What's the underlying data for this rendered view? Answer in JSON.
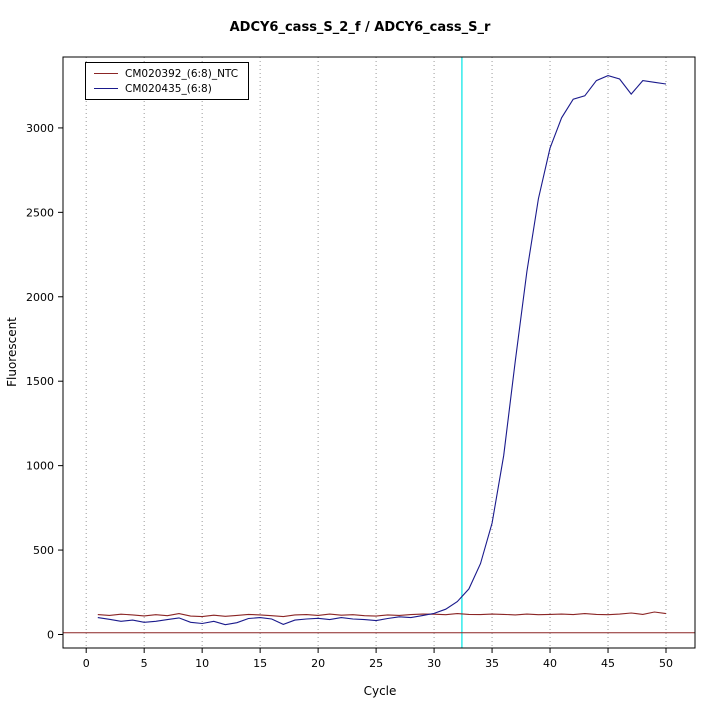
{
  "chart_data": {
    "type": "line",
    "title": "ADCY6_cass_S_2_f / ADCY6_cass_S_r",
    "xlabel": "Cycle",
    "ylabel": "Fluorescent",
    "xlim": [
      -2,
      52.5
    ],
    "ylim": [
      -80,
      3420
    ],
    "x_ticks": [
      0,
      5,
      10,
      15,
      20,
      25,
      30,
      35,
      40,
      45,
      50
    ],
    "y_ticks": [
      0,
      500,
      1000,
      1500,
      2000,
      2500,
      3000
    ],
    "grid": "vertical-dotted",
    "grid_color": "#999999",
    "box_color": "#000000",
    "threshold_line": {
      "x": 32.4,
      "color": "#00e5e5"
    },
    "baseline": {
      "y": 10,
      "color": "#8b2525"
    },
    "legend_position": "top-left",
    "x": [
      1,
      2,
      3,
      4,
      5,
      6,
      7,
      8,
      9,
      10,
      11,
      12,
      13,
      14,
      15,
      16,
      17,
      18,
      19,
      20,
      21,
      22,
      23,
      24,
      25,
      26,
      27,
      28,
      29,
      30,
      31,
      32,
      33,
      34,
      35,
      36,
      37,
      38,
      39,
      40,
      41,
      42,
      43,
      44,
      45,
      46,
      47,
      48,
      49,
      50
    ],
    "series": [
      {
        "name": "CM020392_(6:8)_NTC",
        "color": "#8b2525",
        "values": [
          118,
          113,
          120,
          116,
          110,
          117,
          111,
          124,
          109,
          106,
          114,
          108,
          113,
          119,
          116,
          111,
          106,
          116,
          118,
          113,
          121,
          114,
          117,
          111,
          109,
          116,
          113,
          118,
          121,
          120,
          117,
          124,
          119,
          118,
          121,
          119,
          116,
          121,
          117,
          119,
          121,
          118,
          124,
          119,
          117,
          121,
          127,
          119,
          133,
          124
        ]
      },
      {
        "name": "CM020435_(6:8)",
        "color": "#1a1a8c",
        "values": [
          100,
          90,
          78,
          85,
          72,
          78,
          88,
          98,
          72,
          65,
          78,
          58,
          70,
          95,
          100,
          92,
          60,
          85,
          92,
          96,
          88,
          100,
          92,
          88,
          82,
          95,
          105,
          100,
          112,
          125,
          150,
          195,
          270,
          420,
          660,
          1060,
          1620,
          2150,
          2580,
          2880,
          3060,
          3170,
          3190,
          3280,
          3310,
          3290,
          3200,
          3280,
          3270,
          3260
        ]
      }
    ]
  }
}
